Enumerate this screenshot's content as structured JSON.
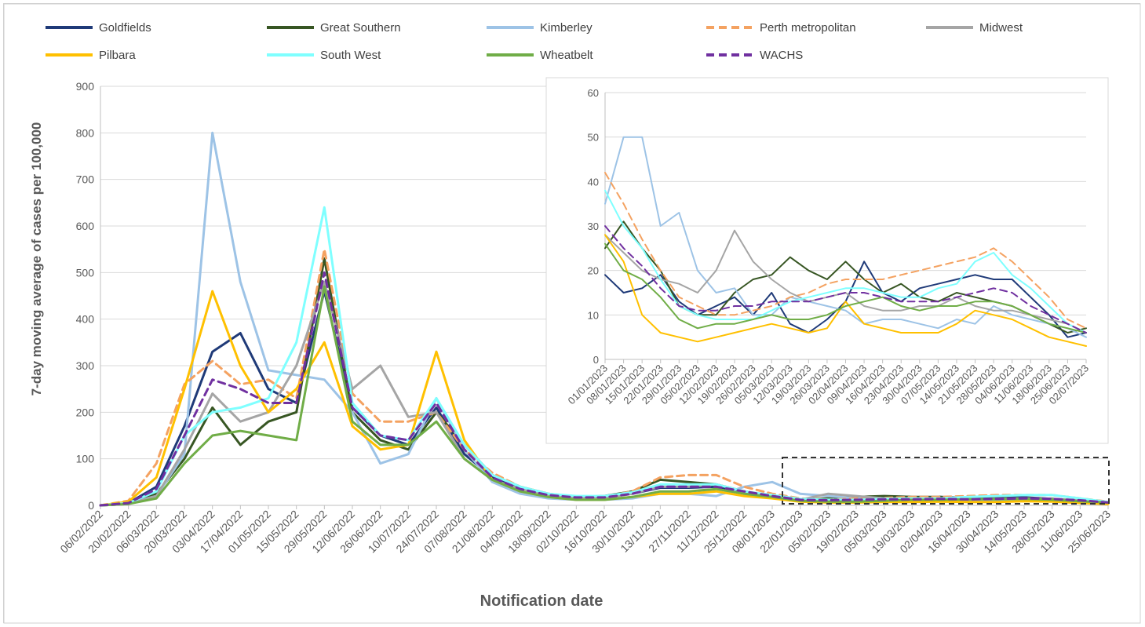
{
  "chart_data": [
    {
      "type": "line",
      "title": "",
      "xlabel": "Notification date",
      "ylabel": "7-day moving average of cases per 100,000",
      "ylim": [
        0,
        900
      ],
      "yticks": [
        0,
        100,
        200,
        300,
        400,
        500,
        600,
        700,
        800,
        900
      ],
      "grid": "horizontal",
      "legend": "top",
      "x": [
        "06/02/2022",
        "20/02/2022",
        "06/03/2022",
        "20/03/2022",
        "03/04/2022",
        "17/04/2022",
        "01/05/2022",
        "15/05/2022",
        "29/05/2022",
        "12/06/2022",
        "26/06/2022",
        "10/07/2022",
        "24/07/2022",
        "07/08/2022",
        "21/08/2022",
        "04/09/2022",
        "18/09/2022",
        "02/10/2022",
        "16/10/2022",
        "30/10/2022",
        "13/11/2022",
        "27/11/2022",
        "11/12/2022",
        "25/12/2022",
        "08/01/2023",
        "22/01/2023",
        "05/02/2023",
        "19/02/2023",
        "05/03/2023",
        "19/03/2023",
        "02/04/2023",
        "16/04/2023",
        "30/04/2023",
        "14/05/2023",
        "28/05/2023",
        "11/06/2023",
        "25/06/2023"
      ],
      "series": [
        {
          "name": "Goldfields",
          "color": "#1f3a78",
          "dash": "solid",
          "values": [
            0,
            5,
            40,
            170,
            330,
            370,
            250,
            220,
            460,
            210,
            150,
            130,
            210,
            110,
            60,
            35,
            22,
            18,
            18,
            25,
            38,
            38,
            40,
            30,
            20,
            10,
            12,
            15,
            14,
            12,
            18,
            16,
            17,
            17,
            14,
            8,
            5
          ]
        },
        {
          "name": "Great Southern",
          "color": "#375623",
          "dash": "solid",
          "values": [
            0,
            3,
            25,
            100,
            210,
            130,
            180,
            200,
            530,
            200,
            140,
            120,
            200,
            130,
            65,
            40,
            25,
            18,
            20,
            30,
            55,
            50,
            45,
            30,
            20,
            12,
            15,
            18,
            20,
            18,
            18,
            15,
            15,
            15,
            14,
            10,
            6
          ]
        },
        {
          "name": "Kimberley",
          "color": "#9dc3e6",
          "dash": "solid",
          "values": [
            0,
            5,
            20,
            110,
            800,
            480,
            290,
            280,
            270,
            200,
            90,
            110,
            230,
            120,
            50,
            25,
            15,
            12,
            12,
            15,
            25,
            25,
            20,
            40,
            50,
            25,
            20,
            15,
            12,
            8,
            10,
            8,
            10,
            12,
            10,
            8,
            5
          ]
        },
        {
          "name": "Perth metropolitan",
          "color": "#f4a261",
          "dash": "dash",
          "values": [
            0,
            10,
            90,
            260,
            310,
            260,
            270,
            230,
            550,
            240,
            180,
            180,
            200,
            120,
            70,
            40,
            25,
            18,
            18,
            30,
            60,
            65,
            65,
            40,
            25,
            15,
            12,
            15,
            16,
            18,
            18,
            20,
            22,
            22,
            22,
            15,
            8
          ]
        },
        {
          "name": "Midwest",
          "color": "#a5a5a5",
          "dash": "solid",
          "values": [
            0,
            3,
            20,
            120,
            240,
            180,
            200,
            300,
            480,
            250,
            300,
            190,
            200,
            100,
            55,
            35,
            20,
            15,
            15,
            25,
            40,
            40,
            45,
            30,
            20,
            12,
            25,
            20,
            15,
            12,
            12,
            12,
            14,
            15,
            13,
            10,
            6
          ]
        },
        {
          "name": "Pilbara",
          "color": "#ffc000",
          "dash": "solid",
          "values": [
            0,
            8,
            60,
            250,
            460,
            300,
            200,
            250,
            350,
            170,
            120,
            130,
            330,
            140,
            55,
            30,
            18,
            12,
            12,
            18,
            25,
            25,
            30,
            20,
            15,
            8,
            6,
            6,
            7,
            7,
            8,
            7,
            7,
            9,
            8,
            5,
            3
          ]
        },
        {
          "name": "South West",
          "color": "#7fffff",
          "dash": "solid",
          "values": [
            0,
            5,
            30,
            150,
            200,
            210,
            230,
            350,
            640,
            220,
            150,
            140,
            230,
            130,
            65,
            40,
            25,
            20,
            20,
            28,
            45,
            45,
            45,
            30,
            22,
            14,
            12,
            12,
            14,
            15,
            15,
            18,
            20,
            22,
            22,
            15,
            7
          ]
        },
        {
          "name": "Wheatbelt",
          "color": "#70ad47",
          "dash": "solid",
          "values": [
            0,
            3,
            15,
            90,
            150,
            160,
            150,
            140,
            470,
            180,
            130,
            130,
            180,
            100,
            55,
            30,
            18,
            12,
            12,
            18,
            30,
            30,
            35,
            25,
            18,
            10,
            8,
            8,
            10,
            12,
            12,
            13,
            13,
            14,
            12,
            9,
            6
          ]
        },
        {
          "name": "WACHS",
          "color": "#7030a0",
          "dash": "dash",
          "values": [
            0,
            5,
            35,
            150,
            270,
            250,
            220,
            220,
            500,
            210,
            150,
            140,
            220,
            120,
            60,
            35,
            22,
            17,
            17,
            25,
            40,
            40,
            40,
            30,
            20,
            12,
            11,
            12,
            13,
            13,
            14,
            13,
            14,
            15,
            14,
            11,
            6
          ]
        }
      ]
    },
    {
      "type": "line",
      "title": "",
      "xlabel": "",
      "ylabel": "",
      "ylim": [
        0,
        60
      ],
      "yticks": [
        0,
        10,
        20,
        30,
        40,
        50,
        60
      ],
      "grid": "horizontal",
      "legend": "none",
      "x": [
        "01/01/2023",
        "08/01/2023",
        "15/01/2023",
        "22/01/2023",
        "29/01/2023",
        "05/02/2023",
        "12/02/2023",
        "19/02/2023",
        "26/02/2023",
        "05/03/2023",
        "12/03/2023",
        "19/03/2023",
        "26/03/2023",
        "02/04/2023",
        "09/04/2023",
        "16/04/2023",
        "23/04/2023",
        "30/04/2023",
        "07/05/2023",
        "14/05/2023",
        "21/05/2023",
        "28/05/2023",
        "04/06/2023",
        "11/06/2023",
        "18/06/2023",
        "25/06/2023",
        "02/07/2023"
      ],
      "series": [
        {
          "name": "Goldfields",
          "color": "#1f3a78",
          "dash": "solid",
          "values": [
            19,
            15,
            16,
            19,
            13,
            10,
            12,
            14,
            10,
            15,
            8,
            6,
            9,
            13,
            22,
            15,
            13,
            16,
            17,
            18,
            19,
            18,
            18,
            14,
            10,
            5,
            6
          ]
        },
        {
          "name": "Great Southern",
          "color": "#375623",
          "dash": "solid",
          "values": [
            25,
            31,
            25,
            20,
            12,
            10,
            10,
            15,
            18,
            19,
            23,
            20,
            18,
            22,
            18,
            15,
            17,
            14,
            13,
            15,
            14,
            13,
            12,
            10,
            8,
            6,
            7
          ]
        },
        {
          "name": "Kimberley",
          "color": "#9dc3e6",
          "dash": "solid",
          "values": [
            35,
            50,
            50,
            30,
            33,
            20,
            15,
            16,
            10,
            10,
            14,
            13,
            12,
            11,
            8,
            9,
            9,
            8,
            7,
            9,
            8,
            12,
            10,
            9,
            8,
            7,
            5
          ]
        },
        {
          "name": "Perth metropolitan",
          "color": "#f4a261",
          "dash": "dash",
          "values": [
            42,
            35,
            27,
            20,
            14,
            12,
            10,
            10,
            11,
            12,
            14,
            15,
            17,
            18,
            18,
            18,
            19,
            20,
            21,
            22,
            23,
            25,
            22,
            18,
            14,
            9,
            7
          ]
        },
        {
          "name": "Midwest",
          "color": "#a5a5a5",
          "dash": "solid",
          "values": [
            28,
            24,
            20,
            18,
            17,
            15,
            20,
            29,
            22,
            18,
            15,
            13,
            14,
            15,
            12,
            11,
            11,
            12,
            12,
            14,
            12,
            11,
            11,
            10,
            9,
            8,
            6
          ]
        },
        {
          "name": "Pilbara",
          "color": "#ffc000",
          "dash": "solid",
          "values": [
            28,
            22,
            10,
            6,
            5,
            4,
            5,
            6,
            7,
            8,
            7,
            6,
            7,
            13,
            8,
            7,
            6,
            6,
            6,
            8,
            11,
            10,
            9,
            7,
            5,
            4,
            3
          ]
        },
        {
          "name": "South West",
          "color": "#7fffff",
          "dash": "solid",
          "values": [
            38,
            30,
            25,
            18,
            12,
            10,
            9,
            9,
            9,
            11,
            13,
            14,
            15,
            16,
            16,
            15,
            14,
            14,
            16,
            17,
            22,
            24,
            19,
            16,
            12,
            8,
            6
          ]
        },
        {
          "name": "Wheatbelt",
          "color": "#70ad47",
          "dash": "solid",
          "values": [
            26,
            20,
            18,
            14,
            9,
            7,
            8,
            8,
            9,
            10,
            9,
            9,
            10,
            12,
            13,
            14,
            12,
            11,
            12,
            12,
            13,
            13,
            12,
            10,
            8,
            7,
            6
          ]
        },
        {
          "name": "WACHS",
          "color": "#7030a0",
          "dash": "dash",
          "values": [
            30,
            25,
            21,
            16,
            12,
            11,
            11,
            12,
            12,
            13,
            13,
            13,
            14,
            15,
            15,
            14,
            13,
            13,
            13,
            14,
            15,
            16,
            15,
            12,
            10,
            8,
            6
          ]
        }
      ]
    }
  ]
}
